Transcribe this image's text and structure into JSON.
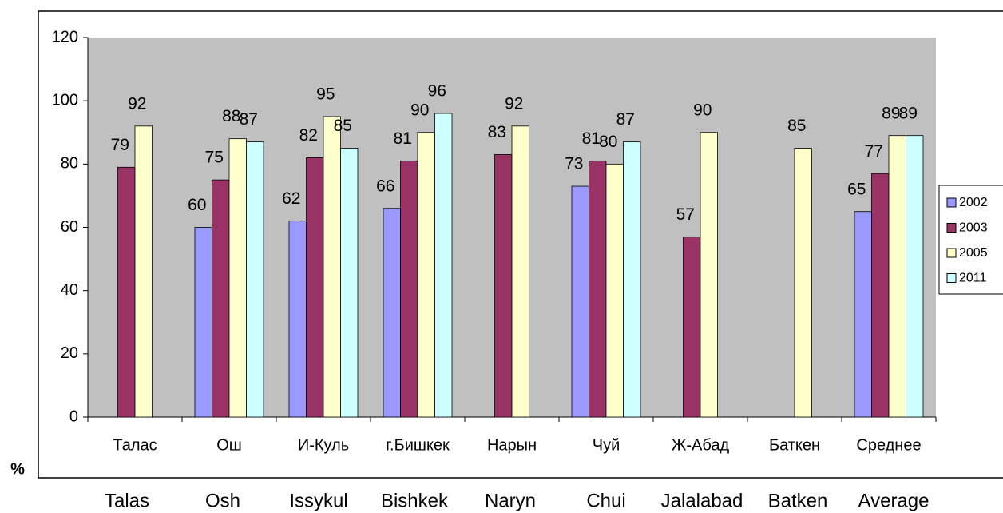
{
  "chart_data": {
    "type": "bar",
    "y_label": "%",
    "categories": [
      "Талас",
      "Ош",
      "И-Куль",
      "г.Бишкек",
      "Нарын",
      "Чуй",
      "Ж-Абад",
      "Баткен",
      "Среднее"
    ],
    "categories_en": [
      "Talas",
      "Osh",
      "Issykul",
      "Bishkek",
      "Naryn",
      "Chui",
      "Jalalabad",
      "Batken",
      "Average"
    ],
    "series": [
      {
        "name": "2002",
        "color": "#9999ff",
        "values": [
          null,
          60,
          62,
          66,
          null,
          73,
          null,
          null,
          65
        ]
      },
      {
        "name": "2003",
        "color": "#993366",
        "values": [
          79,
          75,
          82,
          81,
          83,
          81,
          57,
          null,
          77
        ]
      },
      {
        "name": "2005",
        "color": "#ffffcc",
        "values": [
          92,
          88,
          95,
          90,
          92,
          80,
          90,
          85,
          89
        ]
      },
      {
        "name": "2011",
        "color": "#ccffff",
        "values": [
          null,
          87,
          85,
          96,
          null,
          87,
          null,
          null,
          89
        ]
      }
    ],
    "ylim": [
      0,
      120
    ],
    "yticks": [
      0,
      20,
      40,
      60,
      80,
      100,
      120
    ],
    "plot_background": "#c0c0c0",
    "legend": "right"
  }
}
